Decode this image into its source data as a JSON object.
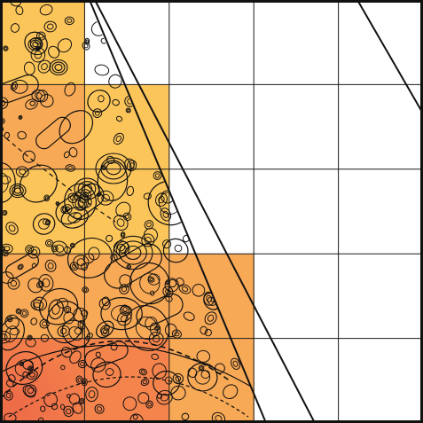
{
  "diagram": {
    "grid": {
      "columns": 5,
      "rows": 5
    },
    "colors": {
      "background": "#ffffff",
      "grid_line": "#1a1a1a",
      "outline": "#111111",
      "cell_light": "#fcc55a",
      "cell_mid": "#f8a955",
      "cell_deep": "#f4844c",
      "cell_hot": "#ee6b47"
    },
    "filled_cells": [
      {
        "col": 0,
        "row": 0,
        "color": "light"
      },
      {
        "col": 0,
        "row": 1,
        "color": "mid"
      },
      {
        "col": 1,
        "row": 1,
        "color": "light"
      },
      {
        "col": 0,
        "row": 2,
        "color": "light"
      },
      {
        "col": 1,
        "row": 2,
        "color": "light"
      },
      {
        "col": 0,
        "row": 3,
        "color": "mid"
      },
      {
        "col": 1,
        "row": 3,
        "color": "mid"
      },
      {
        "col": 2,
        "row": 3,
        "color": "mid"
      },
      {
        "col": 0,
        "row": 4,
        "color": "hot"
      },
      {
        "col": 1,
        "row": 4,
        "color": "deep"
      },
      {
        "col": 2,
        "row": 4,
        "color": "mid"
      }
    ],
    "icon": "bubble-texture-pattern"
  }
}
